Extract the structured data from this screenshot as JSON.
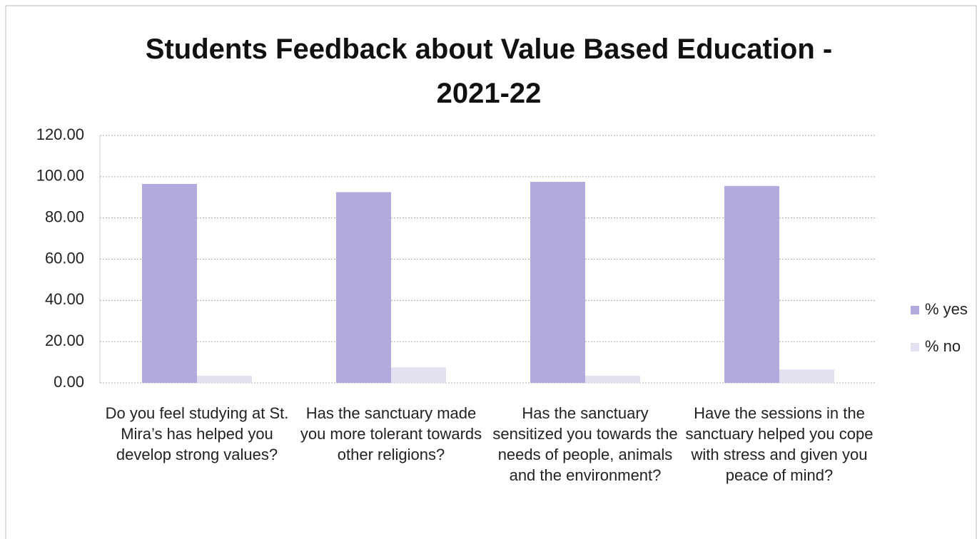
{
  "chart_data": {
    "type": "bar",
    "title": "Students Feedback about Value Based Education - 2021-22",
    "categories": [
      "Do you feel studying at St. Mira’s has helped you develop strong values?",
      "Has the sanctuary made you more tolerant towards other religions?",
      "Has the sanctuary sensitized you towards the needs of people, animals and the environment?",
      "Have the sessions in the sanctuary helped you cope with stress and given you peace of mind?"
    ],
    "series": [
      {
        "name": "% yes",
        "color": "#b3a9dc",
        "values": [
          96.5,
          92.5,
          97.5,
          95.5
        ]
      },
      {
        "name": "% no",
        "color": "#e4e0f2",
        "values": [
          3.5,
          7.5,
          3.5,
          6.5
        ]
      }
    ],
    "ylim": [
      0,
      120
    ],
    "yticks": [
      {
        "value": 0,
        "label": "0.00"
      },
      {
        "value": 20,
        "label": "20.00"
      },
      {
        "value": 40,
        "label": "40.00"
      },
      {
        "value": 60,
        "label": "60.00"
      },
      {
        "value": 80,
        "label": "80.00"
      },
      {
        "value": 100,
        "label": "100.00"
      },
      {
        "value": 120,
        "label": "120.00"
      }
    ],
    "grid": true,
    "legend": "right"
  }
}
